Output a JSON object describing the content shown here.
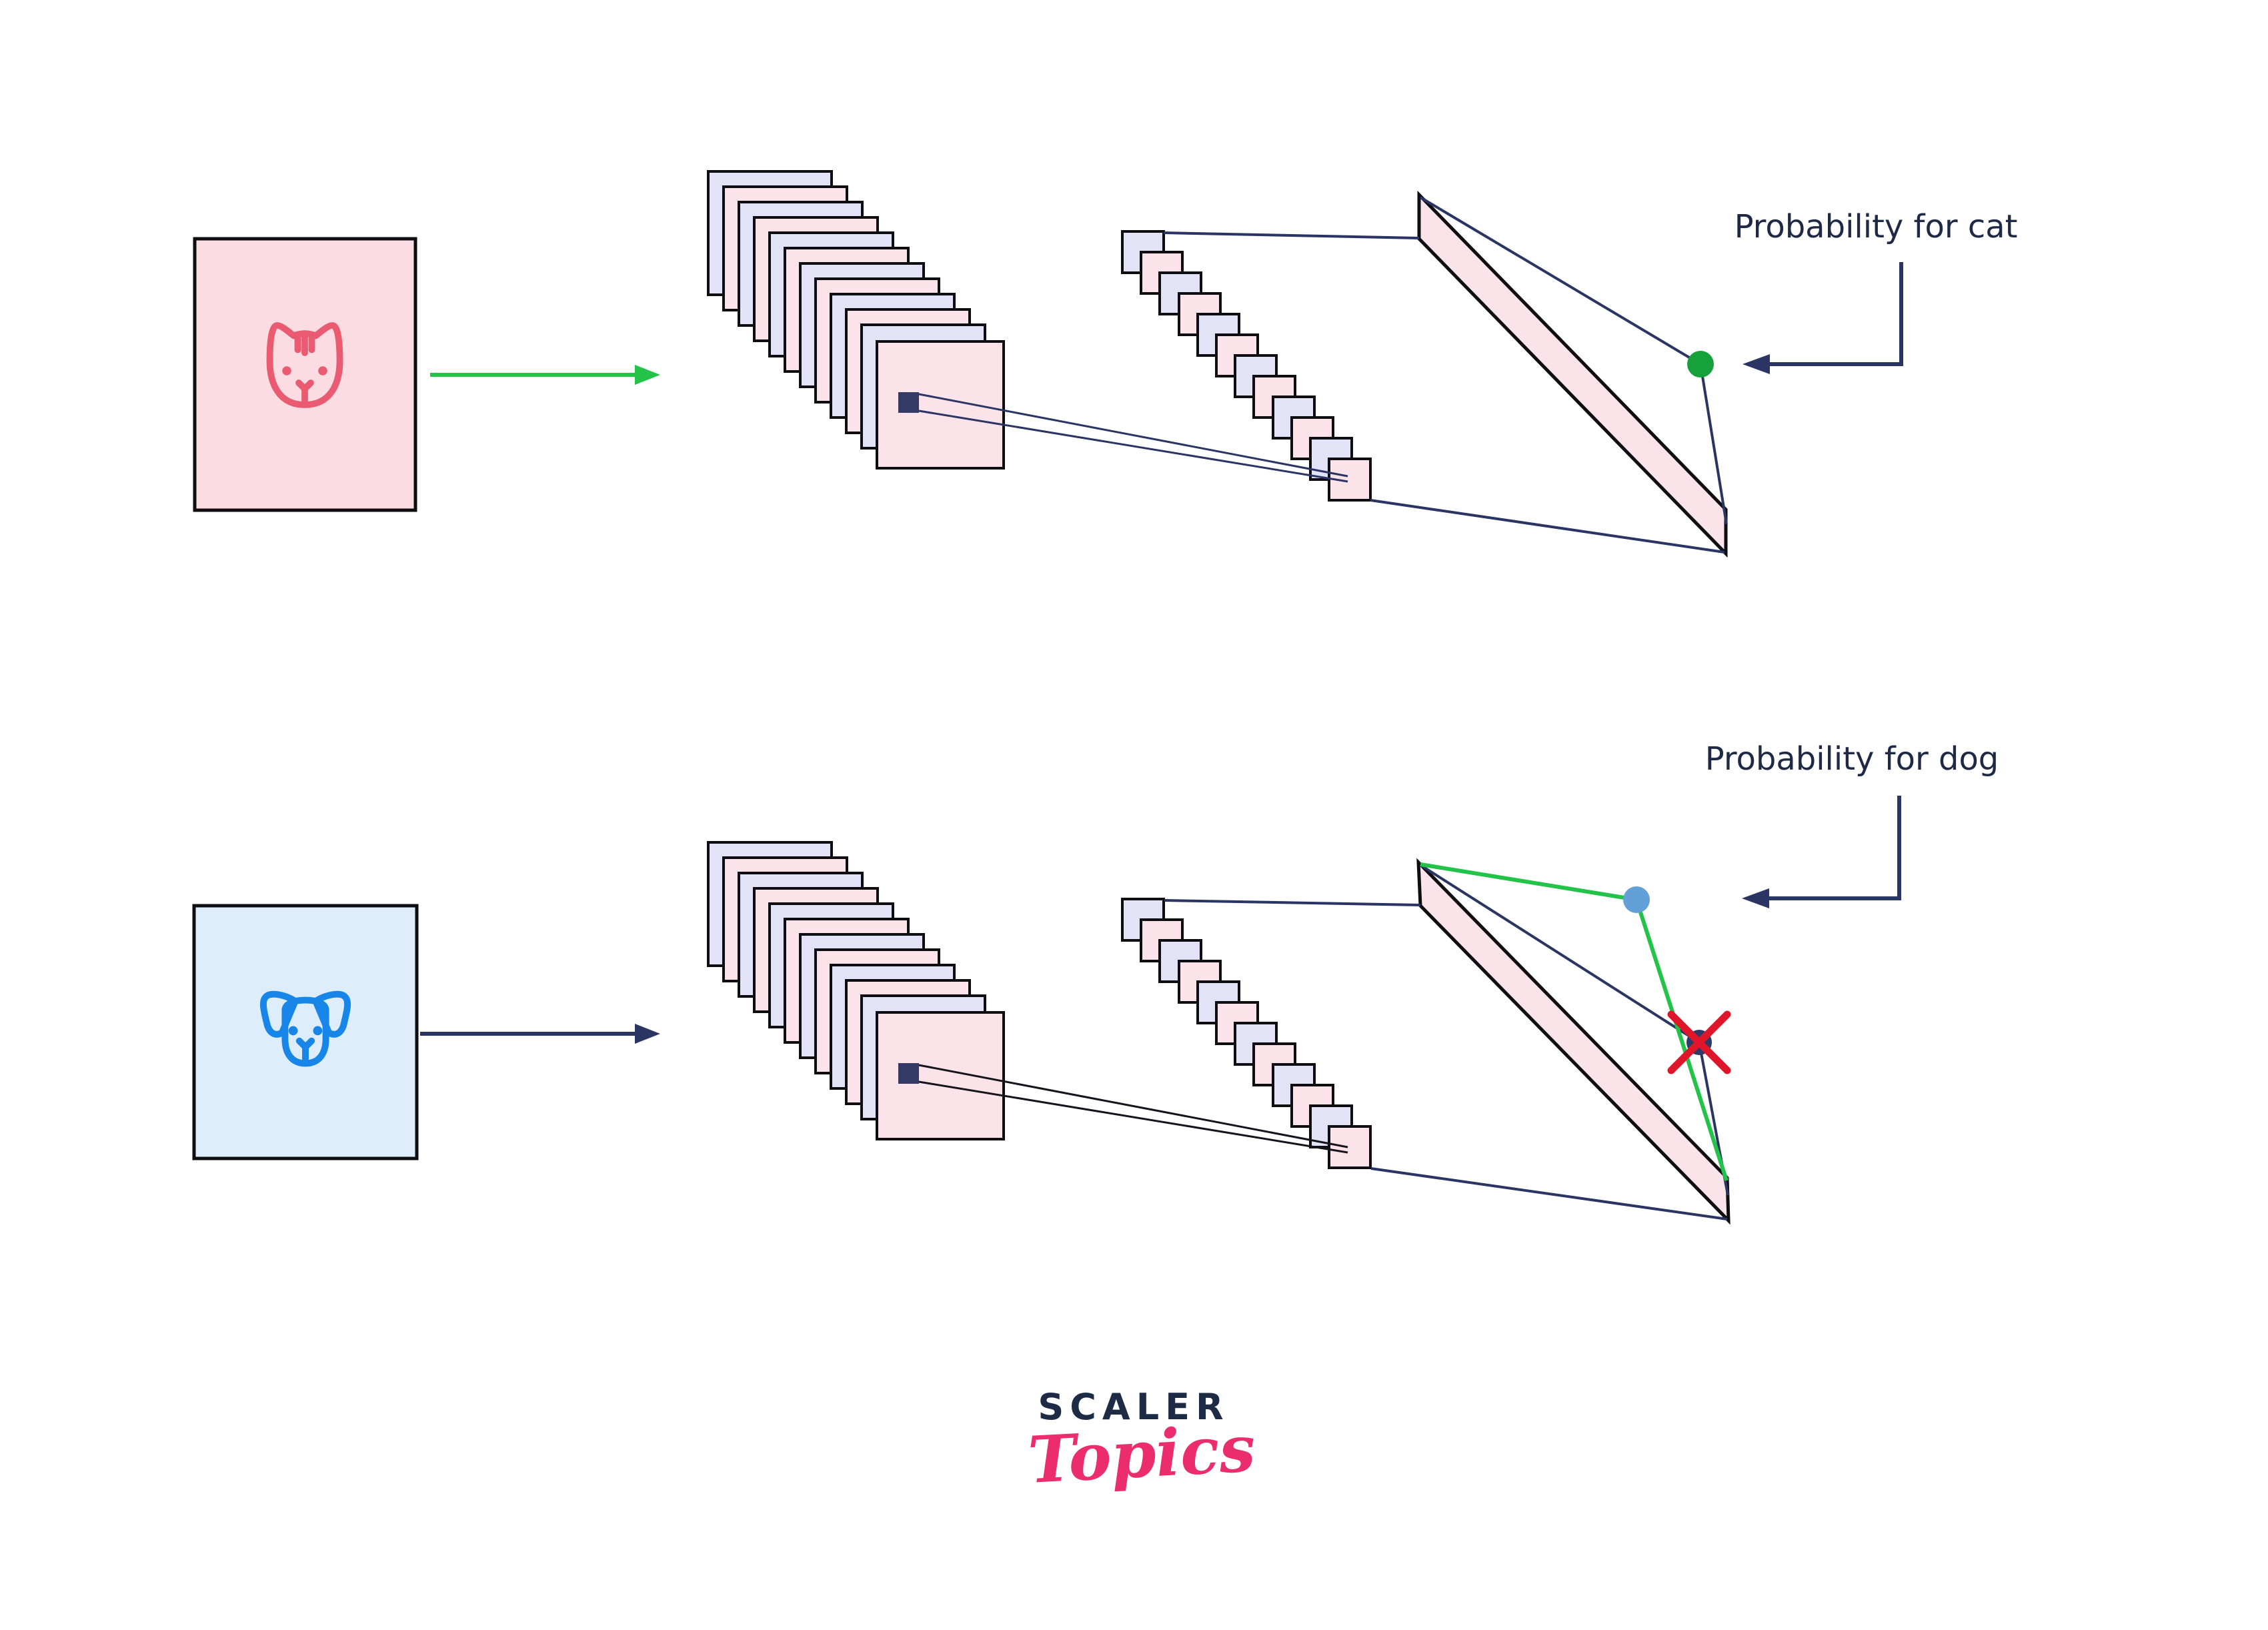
{
  "labels": {
    "cat_output": "Probability for cat",
    "dog_output": "Probability for dog"
  },
  "logo": {
    "primary": "SCALER",
    "secondary": "Topics"
  },
  "network": {
    "rows": [
      {
        "input": "cat image",
        "icon": "cat-icon",
        "conv_back_layers": 11,
        "front_feature_maps": 1,
        "flatten_units": 12,
        "output_marker": "green-dot"
      },
      {
        "input": "dog image",
        "icon": "dog-icon",
        "conv_back_layers": 11,
        "front_feature_maps": 1,
        "flatten_units": 12,
        "output_markers": [
          "blue-dot",
          "crossed-dot"
        ]
      }
    ]
  },
  "icons": {
    "cat": "cat-icon",
    "dog": "dog-icon",
    "input_arrow_cat": "green-right-arrow-icon",
    "input_arrow_dog": "navy-right-arrow-icon",
    "pointer_arrows": "elbow-left-arrow-icon",
    "rejected_output": "red-x-icon"
  },
  "colors": {
    "layer_lavender": "#e3e3f7",
    "layer_pink": "#fce3e9",
    "parallelogram_pink": "#fbe3ea",
    "input_cat_bg": "#fbdce2",
    "input_dog_bg": "#deedfb",
    "cat_icon_stroke": "#ea5a70",
    "dog_icon_stroke": "#1786e8",
    "kernel_navy": "#333a66",
    "line_navy": "#2a3563",
    "line_black": "#14141c",
    "green_line": "#22c348",
    "green_dot": "#17a13a",
    "blue_dot": "#64a0d8",
    "crossed_dot": "#2e3a68",
    "red_x": "#e0162b",
    "text_navy": "#1d2945",
    "logo_navy": "#1d2b45",
    "logo_pink": "#eb2d6d",
    "square_border": "#0d0d12"
  }
}
